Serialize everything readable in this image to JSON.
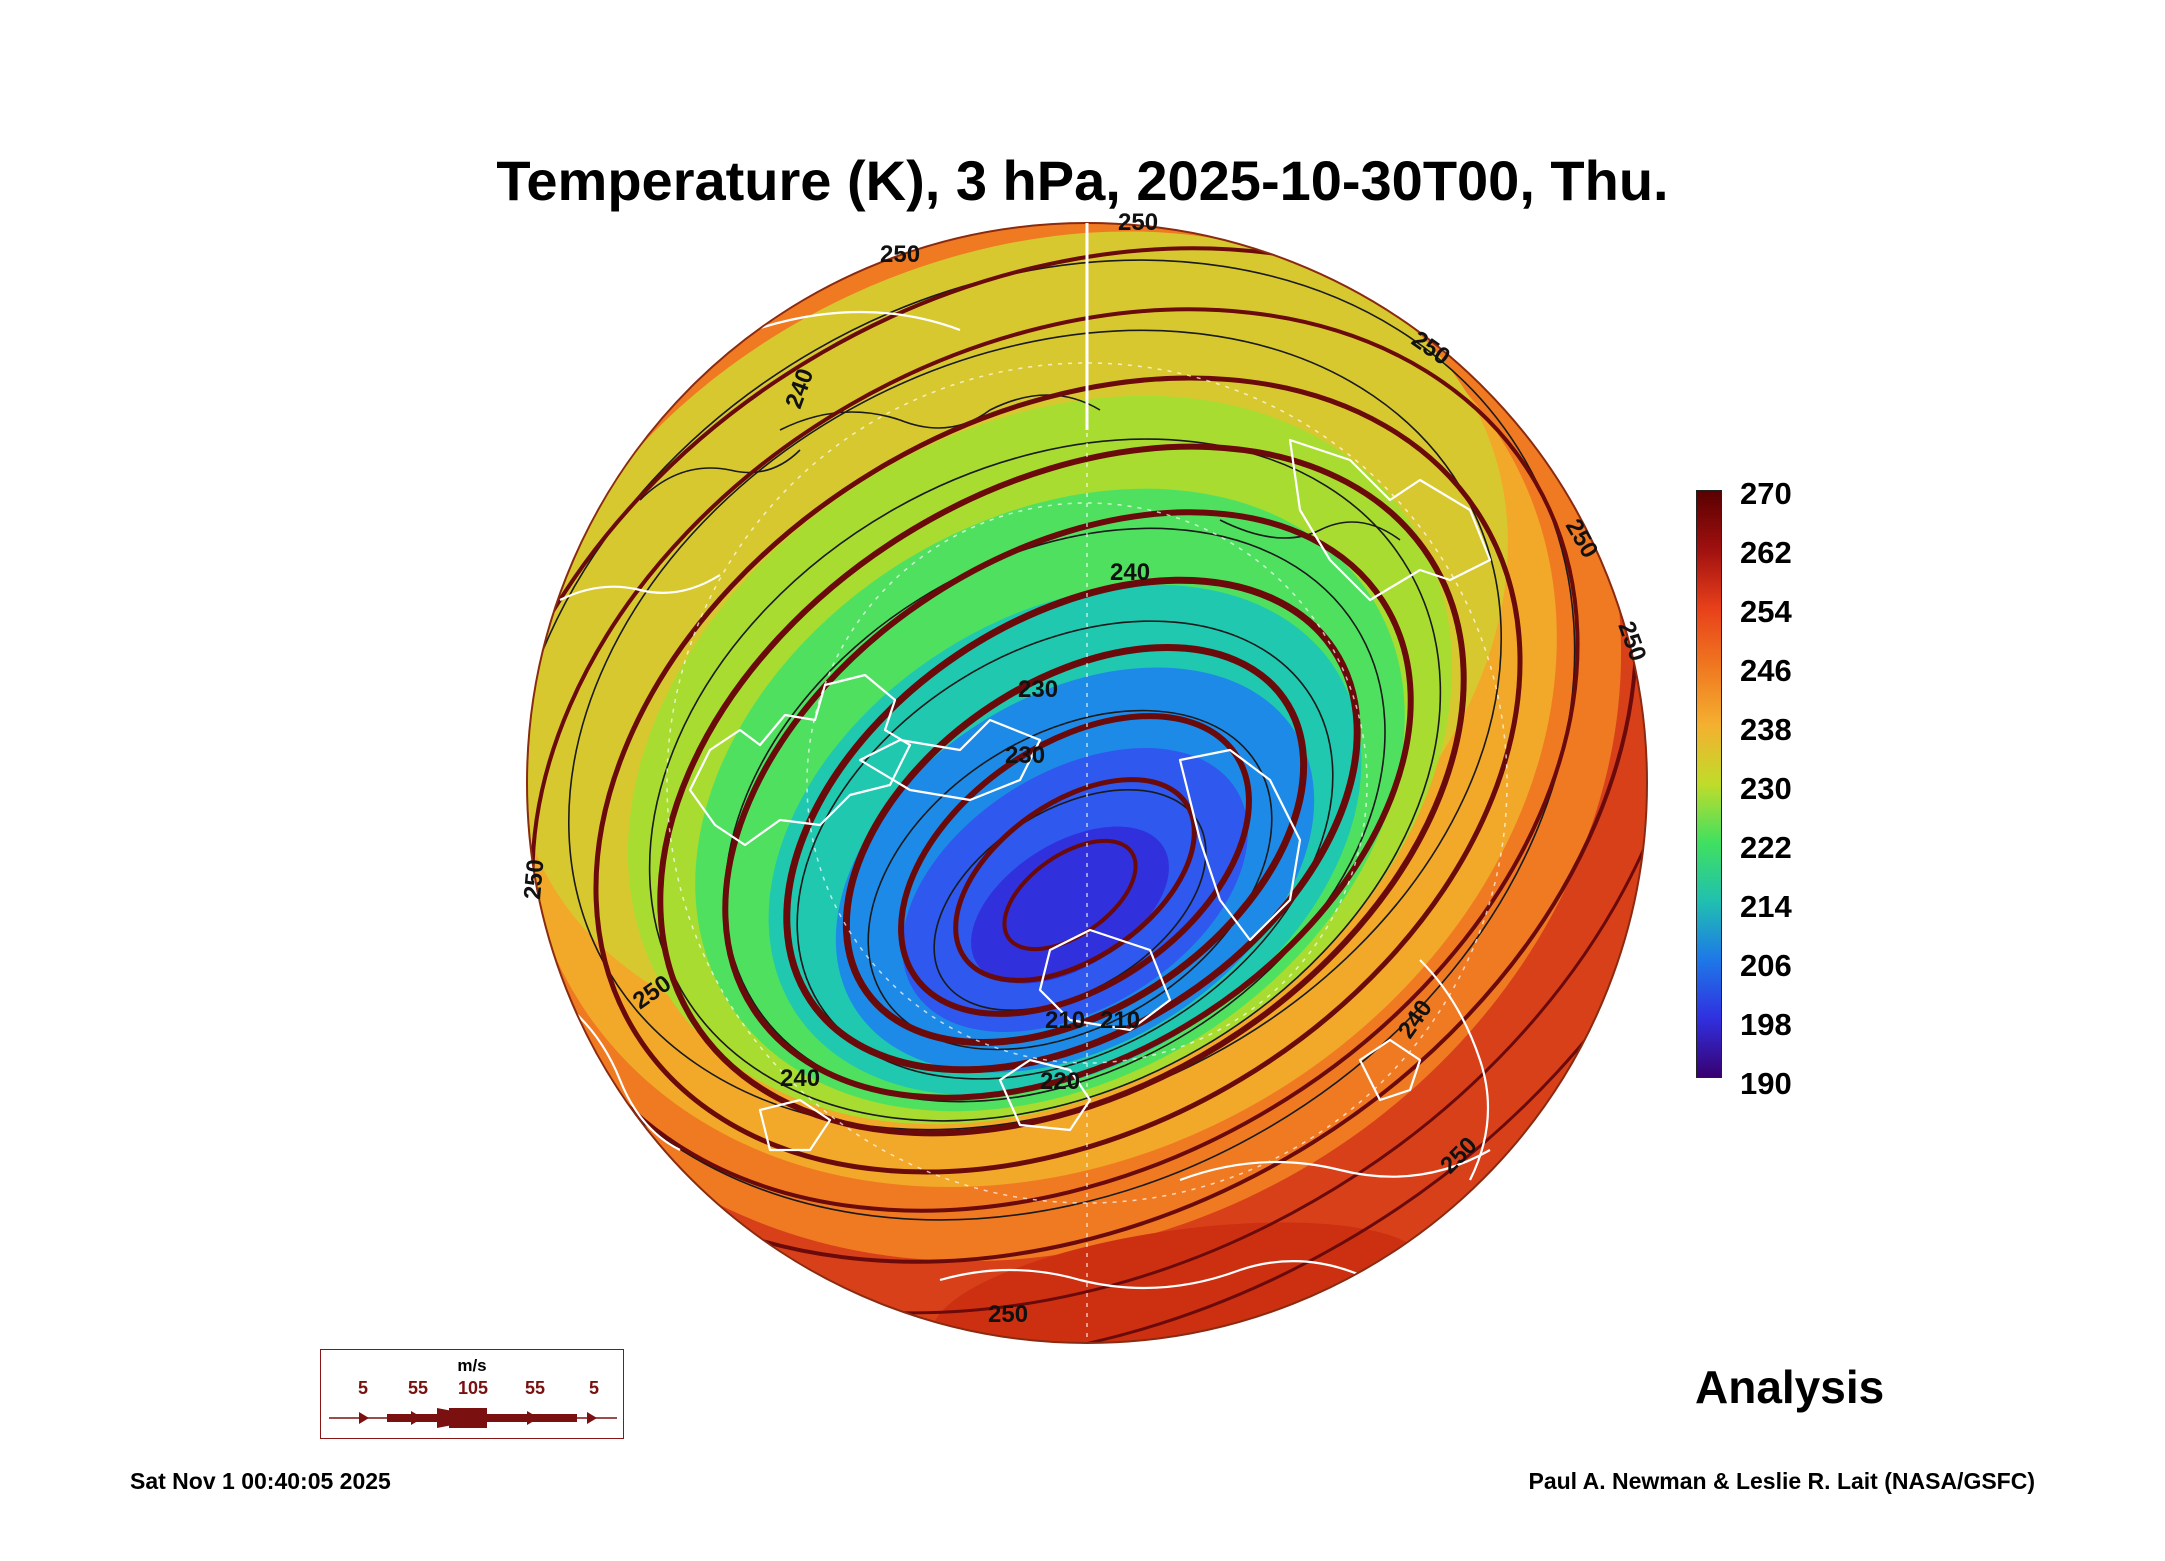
{
  "title": "Temperature (K), 3 hPa, 2025-10-30T00, Thu.",
  "colorbar": {
    "labels": [
      "270",
      "262",
      "254",
      "246",
      "238",
      "230",
      "222",
      "214",
      "206",
      "198",
      "190"
    ],
    "colors": [
      "#5a0000",
      "#a01010",
      "#e8401a",
      "#f07820",
      "#f4b030",
      "#c0dc2a",
      "#40e060",
      "#20c0b0",
      "#1e78e8",
      "#3030e0",
      "#380070"
    ]
  },
  "contour_labels": [
    "250",
    "250",
    "250",
    "250",
    "250",
    "250",
    "240",
    "240",
    "240",
    "230",
    "230",
    "220",
    "210",
    "210",
    "240",
    "250",
    "250",
    "250"
  ],
  "wind_legend": {
    "unit": "m/s",
    "ticks": [
      "5",
      "55",
      "105",
      "55",
      "5"
    ]
  },
  "analysis_label": "Analysis",
  "timestamp": "Sat Nov  1 00:40:05 2025",
  "credit": "Paul A. Newman & Leslie R. Lait (NASA/GSFC)",
  "colors": {
    "streamline": "#6a0a0a",
    "coast": "#ffffff",
    "contour": "#1a1a1a"
  }
}
